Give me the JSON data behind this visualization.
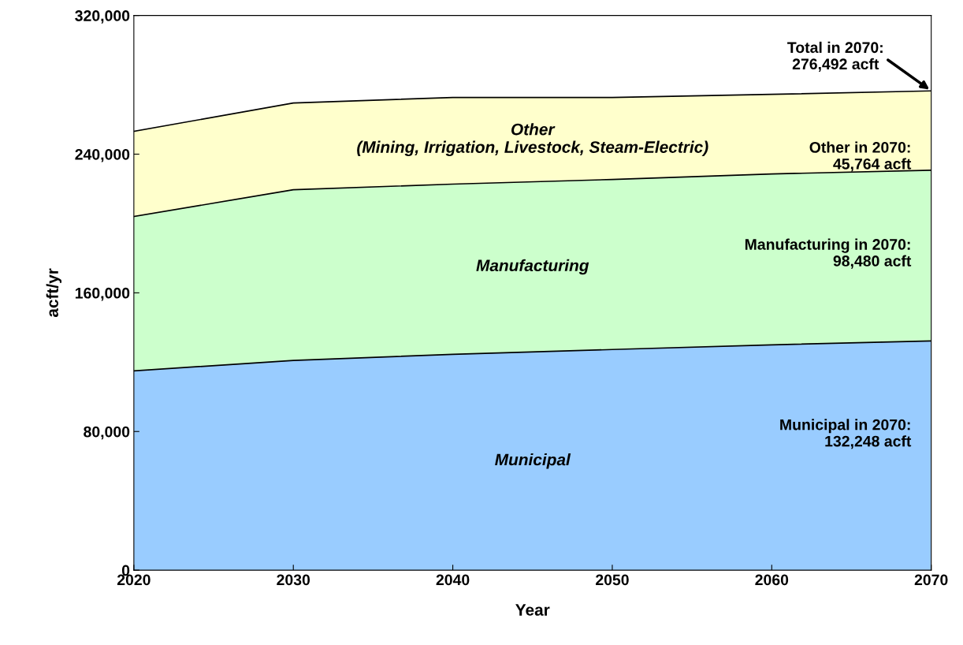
{
  "chart_data": {
    "type": "area",
    "stacked": true,
    "xlabel": "Year",
    "ylabel": "acft/yr",
    "x": [
      2020,
      2030,
      2040,
      2050,
      2060,
      2070
    ],
    "series": [
      {
        "name": "Municipal",
        "color": "#99ccff",
        "values": [
          115000,
          121000,
          124500,
          127300,
          130000,
          132248
        ]
      },
      {
        "name": "Manufacturing",
        "color": "#ccffcc",
        "values": [
          89000,
          98500,
          98200,
          98100,
          98600,
          98480
        ]
      },
      {
        "name": "Other\n(Mining, Irrigation, Livestock, Steam-Electric)",
        "color": "#ffffcc",
        "values": [
          49200,
          50000,
          50000,
          47300,
          45900,
          45764
        ]
      }
    ],
    "xlim": [
      2020,
      2070
    ],
    "xticks": [
      2020,
      2030,
      2040,
      2050,
      2060,
      2070
    ],
    "ylim": [
      0,
      320000
    ],
    "yticks": [
      {
        "value": 0,
        "label": "0"
      },
      {
        "value": 80000,
        "label": "80,000"
      },
      {
        "value": 160000,
        "label": "160,000"
      },
      {
        "value": 240000,
        "label": "240,000"
      },
      {
        "value": 320000,
        "label": "320,000"
      }
    ],
    "annotations": [
      {
        "text": "Total in 2070:\n276,492 acft",
        "x": 2070,
        "y": 276492
      },
      "Other in 2070:\n45,764 acft",
      "Manufacturing in 2070:\n98,480 acft",
      "Municipal in 2070:\n132,248 acft"
    ]
  }
}
